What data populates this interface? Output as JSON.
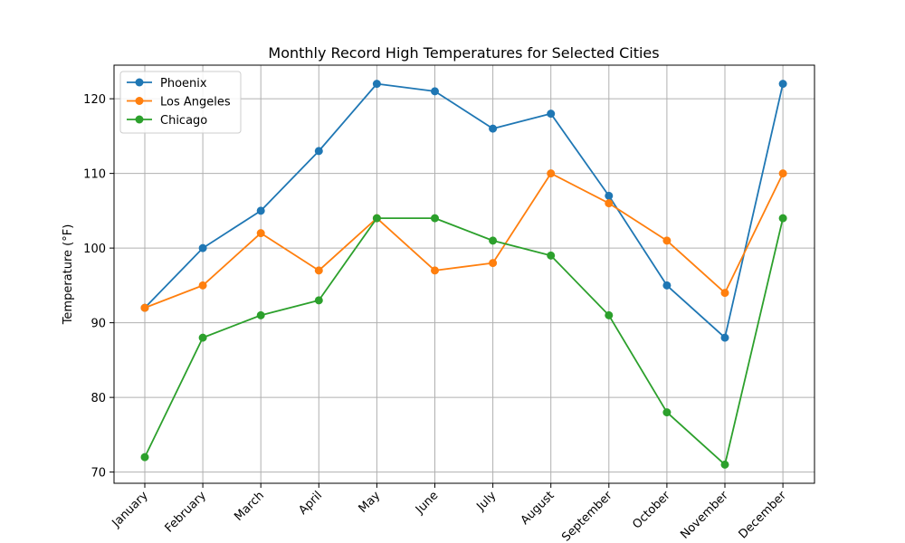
{
  "chart_data": {
    "type": "line",
    "title": "Monthly Record High Temperatures for Selected Cities",
    "xlabel": "",
    "ylabel": "Temperature (°F)",
    "categories": [
      "January",
      "February",
      "March",
      "April",
      "May",
      "June",
      "July",
      "August",
      "September",
      "October",
      "November",
      "December"
    ],
    "ylim": [
      68.5,
      124.5
    ],
    "yticks": [
      70,
      80,
      90,
      100,
      110,
      120
    ],
    "grid": true,
    "legend": "top-left",
    "series": [
      {
        "name": "Phoenix",
        "color": "#1f77b4",
        "values": [
          92,
          100,
          105,
          113,
          122,
          121,
          116,
          118,
          107,
          95,
          88,
          122
        ]
      },
      {
        "name": "Los Angeles",
        "color": "#ff7f0e",
        "values": [
          92,
          95,
          102,
          97,
          104,
          97,
          98,
          110,
          106,
          101,
          94,
          110
        ]
      },
      {
        "name": "Chicago",
        "color": "#2ca02c",
        "values": [
          72,
          88,
          91,
          93,
          104,
          104,
          101,
          99,
          91,
          78,
          71,
          104
        ]
      }
    ]
  }
}
